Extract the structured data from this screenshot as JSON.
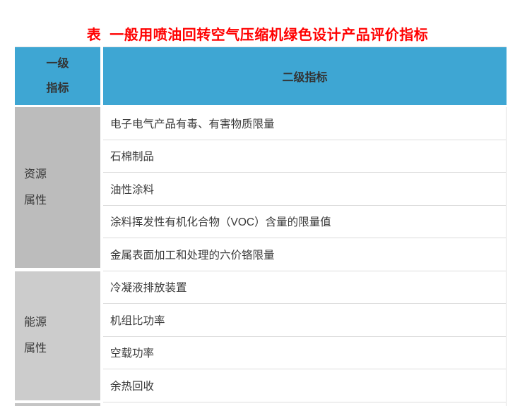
{
  "title": "表  一般用喷油回转空气压缩机绿色设计产品评价指标",
  "colors": {
    "title_red": "#FF0000",
    "header_blue": "#3EA6D3",
    "group1_gray": "#BCBCBC",
    "group2_gray": "#CCCCCC",
    "next_group_gray": "#C5C5C5",
    "row_divider_gray": "#DCDCDC",
    "text_dark": "#3A3A3A"
  },
  "table": {
    "header": {
      "col1_lines": [
        "一级",
        "指标"
      ],
      "col2": "二级指标"
    },
    "groups": [
      {
        "label_lines": [
          "资源",
          "属性"
        ],
        "rows": [
          "电子电气产品有毒、有害物质限量",
          "石棉制品",
          "油性涂料",
          "涂料挥发性有机化合物（VOC）含量的限量值",
          "金属表面加工和处理的六价铬限量"
        ]
      },
      {
        "label_lines": [
          "能源",
          "属性"
        ],
        "rows": [
          "冷凝液排放装置",
          "机组比功率",
          "空载功率",
          "余热回收"
        ]
      }
    ]
  }
}
